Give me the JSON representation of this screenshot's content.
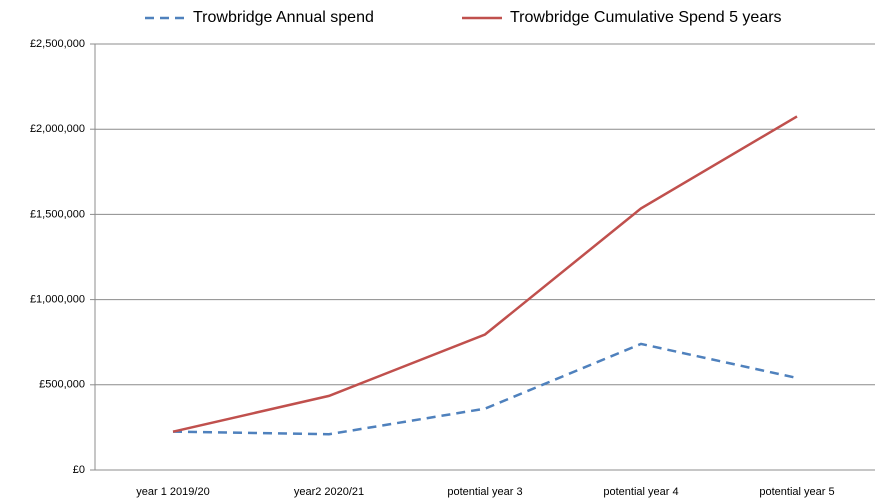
{
  "chart_data": {
    "type": "line",
    "categories": [
      "year 1 2019/20",
      "year2 2020/21",
      "potential year 3",
      "potential year 4",
      "potential year 5"
    ],
    "series": [
      {
        "name": "Trowbridge Annual spend",
        "color": "#4f81bd",
        "dash": true,
        "values": [
          225000,
          210000,
          360000,
          740000,
          540000
        ]
      },
      {
        "name": "Trowbridge Cumulative Spend 5 years",
        "color": "#c0504d",
        "dash": false,
        "values": [
          225000,
          435000,
          795000,
          1535000,
          2075000
        ]
      }
    ],
    "ylim": [
      0,
      2500000
    ],
    "yticks": [
      {
        "value": 0,
        "label": "£0"
      },
      {
        "value": 500000,
        "label": "£500,000"
      },
      {
        "value": 1000000,
        "label": "£1,000,000"
      },
      {
        "value": 1500000,
        "label": "£1,500,000"
      },
      {
        "value": 2000000,
        "label": "£2,000,000"
      },
      {
        "value": 2500000,
        "label": "£2,500,000"
      }
    ],
    "grid": true,
    "legend": "top"
  }
}
